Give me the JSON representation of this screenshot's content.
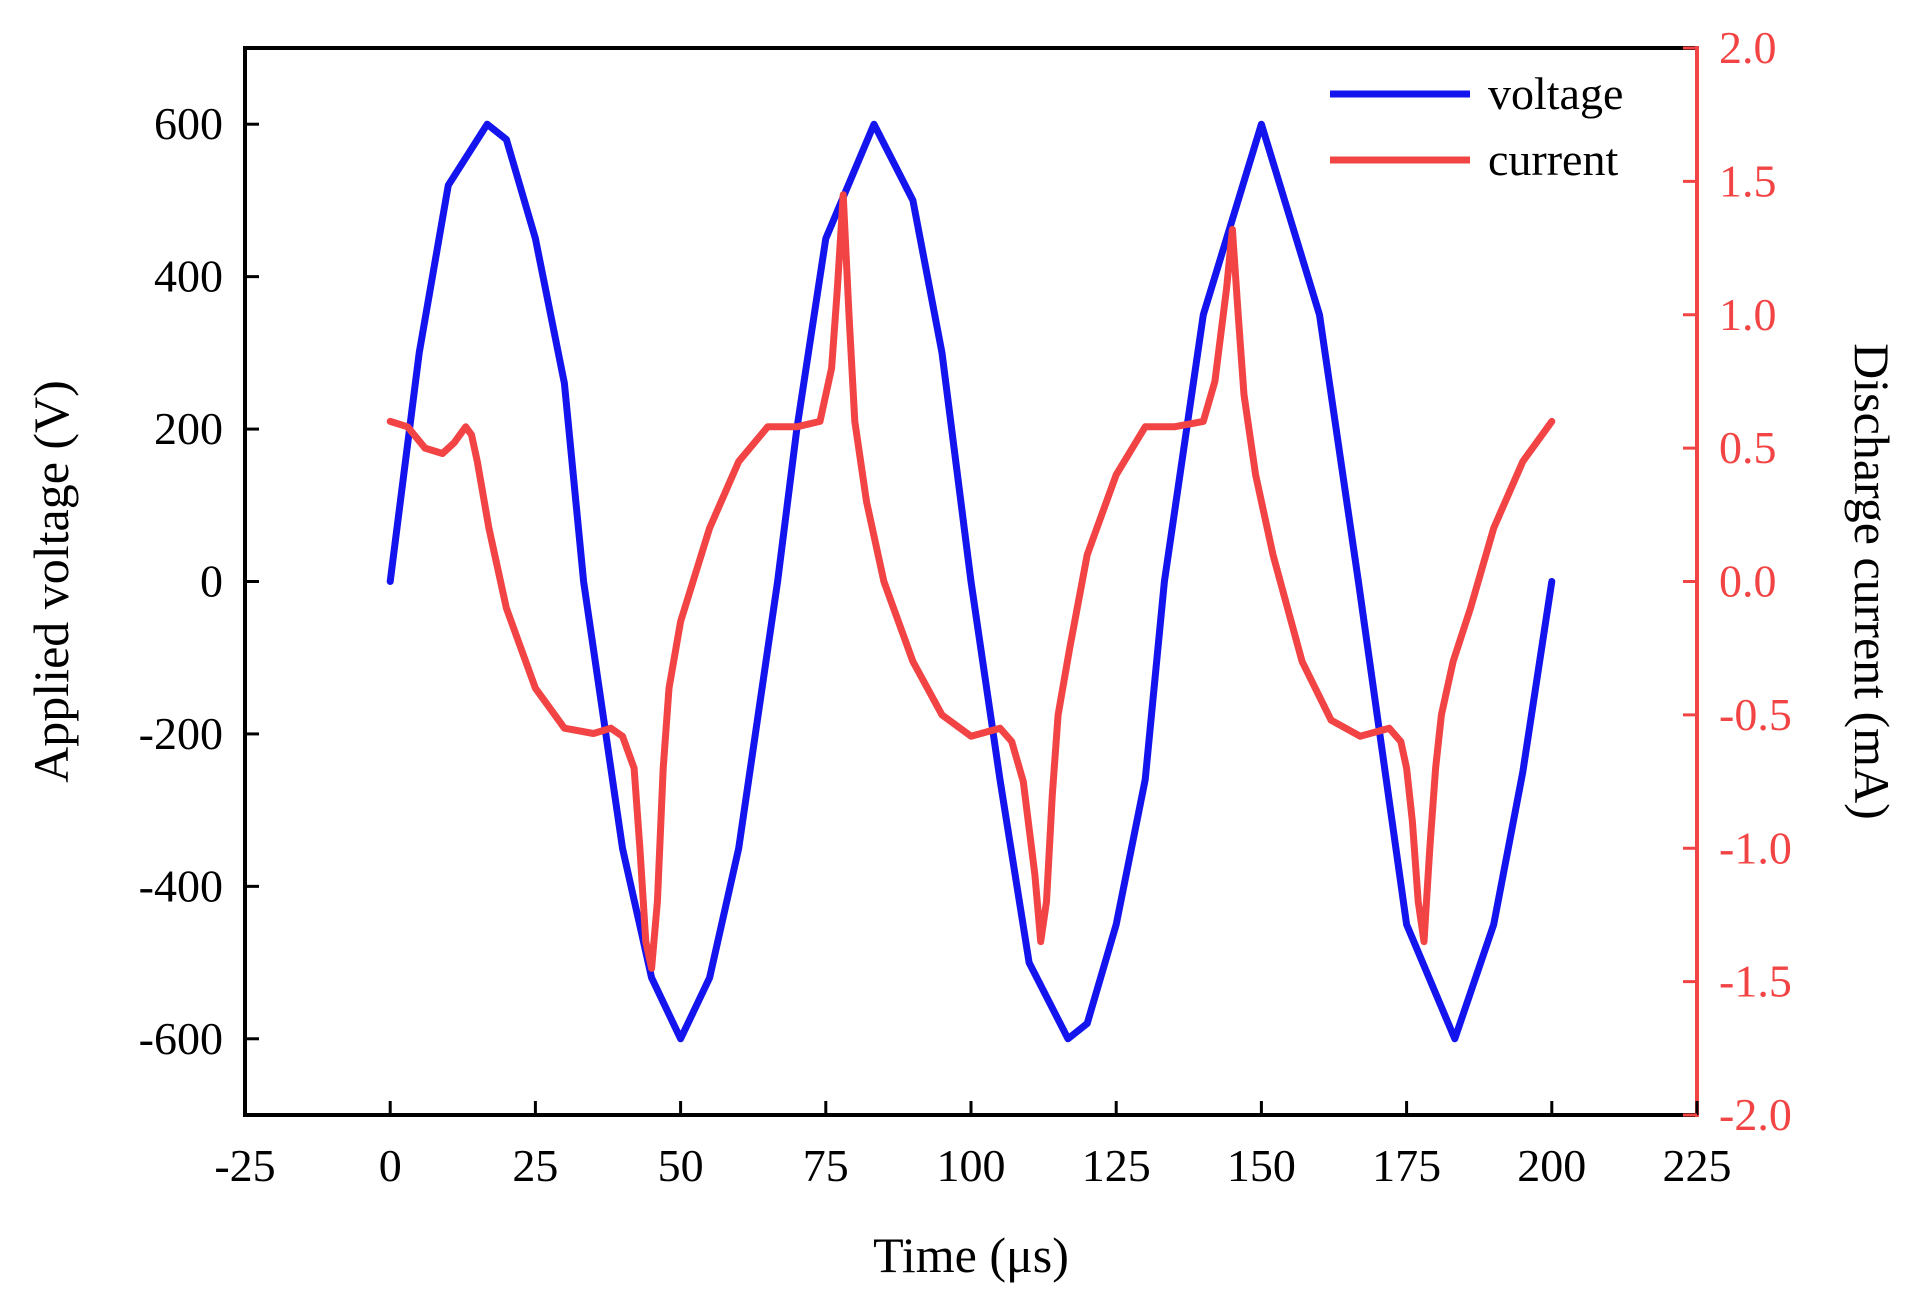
{
  "chart_data": {
    "type": "line",
    "title": "",
    "xlabel": "Time (μs)",
    "ylabel_left": "Applied voltage (V)",
    "ylabel_right": "Discharge current (mA)",
    "xlim": [
      -25,
      225
    ],
    "ylim_left": [
      -700,
      700
    ],
    "ylim_right": [
      -2.0,
      2.0
    ],
    "x_ticks": [
      "-25",
      "0",
      "25",
      "50",
      "75",
      "100",
      "125",
      "150",
      "175",
      "200",
      "225"
    ],
    "y_left_ticks": [
      "-600",
      "-400",
      "-200",
      "0",
      "200",
      "400",
      "600"
    ],
    "y_right_ticks": [
      "-2.0",
      "-1.5",
      "-1.0",
      "-0.5",
      "0.0",
      "0.5",
      "1.0",
      "1.5",
      "2.0"
    ],
    "grid": false,
    "legend_position": "top-right",
    "colors": {
      "voltage": "#1414ee",
      "current": "#f24444",
      "right_axis": "#f24444",
      "axes": "#000000"
    },
    "series": [
      {
        "name": "voltage",
        "axis": "left",
        "x": [
          0,
          5,
          10,
          16.7,
          20,
          25,
          30,
          33.3,
          40,
          45,
          50,
          55,
          60,
          66.7,
          70,
          75,
          83.3,
          90,
          95,
          100,
          105,
          110,
          116.7,
          120,
          125,
          130,
          133.3,
          140,
          150,
          160,
          166.7,
          175,
          183.3,
          190,
          195,
          200
        ],
        "y": [
          0,
          300,
          520,
          600,
          580,
          450,
          260,
          0,
          -350,
          -520,
          -600,
          -520,
          -350,
          0,
          200,
          450,
          600,
          500,
          300,
          0,
          -260,
          -500,
          -600,
          -580,
          -450,
          -260,
          0,
          350,
          600,
          350,
          0,
          -450,
          -600,
          -450,
          -250,
          0
        ]
      },
      {
        "name": "current",
        "axis": "right",
        "x": [
          0,
          3,
          6,
          9,
          11,
          13,
          14,
          15,
          17,
          20,
          25,
          30,
          35,
          38,
          40,
          42,
          43,
          44,
          45,
          46,
          47,
          48,
          50,
          55,
          60,
          65,
          70,
          74,
          76,
          77,
          78,
          79,
          80,
          82,
          85,
          90,
          95,
          100,
          105,
          107,
          109,
          111,
          112,
          113,
          114,
          115,
          117,
          120,
          125,
          130,
          135,
          140,
          142,
          144,
          145,
          146,
          147,
          149,
          152,
          157,
          162,
          167,
          172,
          174,
          175,
          176,
          177,
          178,
          179,
          180,
          181,
          183,
          186,
          190,
          195,
          200
        ],
        "y": [
          0.6,
          0.58,
          0.5,
          0.48,
          0.52,
          0.58,
          0.55,
          0.45,
          0.2,
          -0.1,
          -0.4,
          -0.55,
          -0.57,
          -0.55,
          -0.58,
          -0.7,
          -1.0,
          -1.35,
          -1.45,
          -1.2,
          -0.7,
          -0.4,
          -0.15,
          0.2,
          0.45,
          0.58,
          0.58,
          0.6,
          0.8,
          1.1,
          1.45,
          1.0,
          0.6,
          0.3,
          0.0,
          -0.3,
          -0.5,
          -0.58,
          -0.55,
          -0.6,
          -0.75,
          -1.1,
          -1.35,
          -1.2,
          -0.8,
          -0.5,
          -0.25,
          0.1,
          0.4,
          0.58,
          0.58,
          0.6,
          0.75,
          1.1,
          1.32,
          1.0,
          0.7,
          0.4,
          0.1,
          -0.3,
          -0.52,
          -0.58,
          -0.55,
          -0.6,
          -0.7,
          -0.9,
          -1.2,
          -1.35,
          -1.0,
          -0.7,
          -0.5,
          -0.3,
          -0.1,
          0.2,
          0.45,
          0.6
        ]
      }
    ]
  }
}
